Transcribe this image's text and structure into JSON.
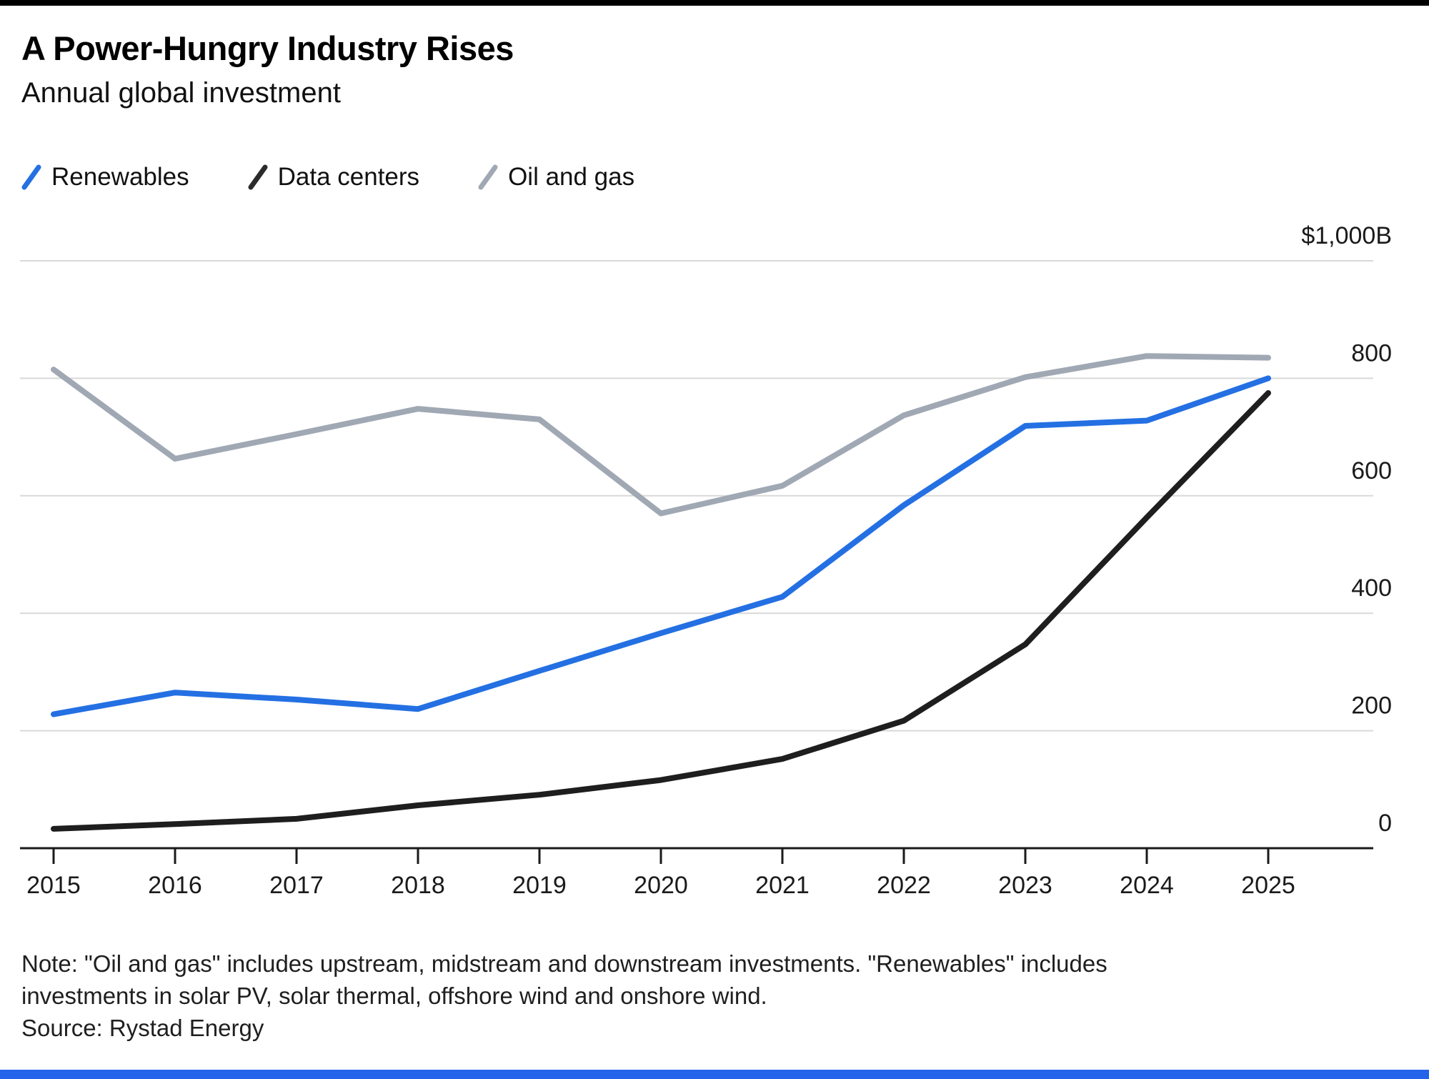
{
  "header": {
    "title": "A Power-Hungry Industry Rises",
    "subtitle": "Annual global investment"
  },
  "legend": [
    {
      "label": "Renewables",
      "color": "#2470e3"
    },
    {
      "label": "Data centers",
      "color": "#2b2b2b"
    },
    {
      "label": "Oil and gas",
      "color": "#a0a8b4"
    }
  ],
  "chart_data": {
    "type": "line",
    "title": "A Power-Hungry Industry Rises",
    "subtitle": "Annual global investment",
    "x": [
      2015,
      2016,
      2017,
      2018,
      2019,
      2020,
      2021,
      2022,
      2023,
      2024,
      2025
    ],
    "x_labels": [
      "2015",
      "2016",
      "2017",
      "2018",
      "2019",
      "2020",
      "2021",
      "2022",
      "2023",
      "2024",
      "2025"
    ],
    "series": [
      {
        "name": "Renewables",
        "color": "#2470e3",
        "values": [
          228,
          265,
          253,
          237,
          302,
          366,
          428,
          584,
          719,
          728,
          800
        ]
      },
      {
        "name": "Data centers",
        "color": "#1e1e1e",
        "values": [
          33,
          41,
          50,
          73,
          91,
          116,
          152,
          217,
          347,
          563,
          775
        ]
      },
      {
        "name": "Oil and gas",
        "color": "#a0a8b4",
        "values": [
          815,
          663,
          705,
          748,
          730,
          570,
          617,
          737,
          802,
          838,
          835
        ]
      }
    ],
    "ylim": [
      0,
      1000
    ],
    "yticks": [
      {
        "value": 1000,
        "label": "$1,000B"
      },
      {
        "value": 800,
        "label": "800"
      },
      {
        "value": 600,
        "label": "600"
      },
      {
        "value": 400,
        "label": "400"
      },
      {
        "value": 200,
        "label": "200"
      },
      {
        "value": 0,
        "label": "0"
      }
    ],
    "grid": true,
    "legend_position": "top",
    "unit": "billion USD"
  },
  "footer": {
    "note_line1": "Note: \"Oil and gas\" includes upstream, midstream and downstream investments. \"Renewables\" includes",
    "note_line2": "investments in solar PV, solar thermal, offshore wind and onshore wind.",
    "source": "Source: Rystad Energy"
  },
  "branding": {
    "top_bar_color": "#000000",
    "bottom_bar_color": "#2464eb"
  }
}
